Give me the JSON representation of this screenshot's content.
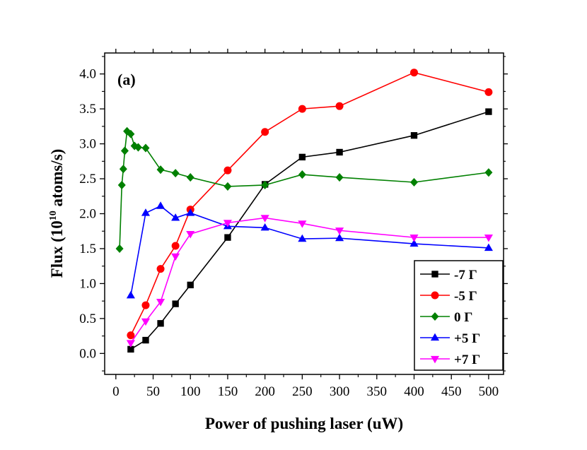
{
  "chart_data": {
    "type": "line",
    "panel_label": "(a)",
    "xlabel": "Power of pushing laser (uW)",
    "ylabel": {
      "prefix": "Flux (10",
      "superscript": "10",
      "suffix": " atoms/s)"
    },
    "xlim": [
      -15,
      520
    ],
    "ylim": [
      -0.3,
      4.3
    ],
    "xticks": [
      0,
      50,
      100,
      150,
      200,
      250,
      300,
      350,
      400,
      450,
      500
    ],
    "xtick_labels": [
      "0",
      "50",
      "100",
      "150",
      "200",
      "250",
      "300",
      "350",
      "400",
      "450",
      "500"
    ],
    "yticks": [
      0.0,
      0.5,
      1.0,
      1.5,
      2.0,
      2.5,
      3.0,
      3.5,
      4.0
    ],
    "ytick_labels": [
      "0.0",
      "0.5",
      "1.0",
      "1.5",
      "2.0",
      "2.5",
      "3.0",
      "3.5",
      "4.0"
    ],
    "grid": false,
    "legend_position": "bottom-right",
    "series": [
      {
        "name": "-7 Γ",
        "color": "#000000",
        "marker": "square",
        "x": [
          20,
          40,
          60,
          80,
          100,
          150,
          200,
          250,
          300,
          400,
          500
        ],
        "y": [
          0.06,
          0.19,
          0.43,
          0.71,
          0.98,
          1.66,
          2.42,
          2.81,
          2.88,
          3.12,
          3.46
        ]
      },
      {
        "name": "-5 Γ",
        "color": "#ff0000",
        "marker": "circle",
        "x": [
          20,
          40,
          60,
          80,
          100,
          150,
          200,
          250,
          300,
          400,
          500
        ],
        "y": [
          0.26,
          0.69,
          1.21,
          1.54,
          2.06,
          2.62,
          3.17,
          3.5,
          3.54,
          4.02,
          3.74
        ]
      },
      {
        "name": "0 Γ",
        "color": "#008000",
        "marker": "diamond",
        "x": [
          5,
          8,
          10,
          12,
          15,
          20,
          25,
          30,
          40,
          60,
          80,
          100,
          150,
          200,
          250,
          300,
          400,
          500
        ],
        "y": [
          1.5,
          2.41,
          2.64,
          2.9,
          3.18,
          3.14,
          2.97,
          2.95,
          2.94,
          2.63,
          2.58,
          2.52,
          2.39,
          2.41,
          2.56,
          2.52,
          2.45,
          2.59
        ]
      },
      {
        "name": "+5 Γ",
        "color": "#0000ff",
        "marker": "triangle-up",
        "x": [
          20,
          40,
          60,
          80,
          100,
          150,
          200,
          250,
          300,
          400,
          500
        ],
        "y": [
          0.83,
          2.01,
          2.11,
          1.94,
          2.01,
          1.82,
          1.8,
          1.64,
          1.65,
          1.57,
          1.51
        ]
      },
      {
        "name": "+7 Γ",
        "color": "#ff00ff",
        "marker": "triangle-down",
        "x": [
          20,
          40,
          60,
          80,
          100,
          150,
          200,
          250,
          300,
          400,
          500
        ],
        "y": [
          0.15,
          0.46,
          0.74,
          1.39,
          1.71,
          1.87,
          1.94,
          1.86,
          1.76,
          1.66,
          1.66
        ]
      }
    ]
  }
}
